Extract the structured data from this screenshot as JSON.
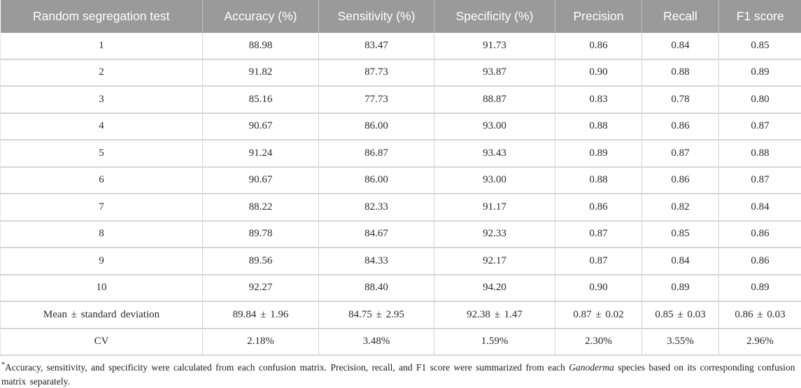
{
  "table": {
    "columns": [
      "Random segregation test",
      "Accuracy (%)",
      "Sensitivity (%)",
      "Specificity (%)",
      "Precision",
      "Recall",
      "F1 score"
    ],
    "rows": [
      [
        "1",
        "88.98",
        "83.47",
        "91.73",
        "0.86",
        "0.84",
        "0.85"
      ],
      [
        "2",
        "91.82",
        "87.73",
        "93.87",
        "0.90",
        "0.88",
        "0.89"
      ],
      [
        "3",
        "85.16",
        "77.73",
        "88.87",
        "0.83",
        "0.78",
        "0.80"
      ],
      [
        "4",
        "90.67",
        "86.00",
        "93.00",
        "0.88",
        "0.86",
        "0.87"
      ],
      [
        "5",
        "91.24",
        "86.87",
        "93.43",
        "0.89",
        "0.87",
        "0.88"
      ],
      [
        "6",
        "90.67",
        "86.00",
        "93.00",
        "0.88",
        "0.86",
        "0.87"
      ],
      [
        "7",
        "88.22",
        "82.33",
        "91.17",
        "0.86",
        "0.82",
        "0.84"
      ],
      [
        "8",
        "89.78",
        "84.67",
        "92.33",
        "0.87",
        "0.85",
        "0.86"
      ],
      [
        "9",
        "89.56",
        "84.33",
        "92.17",
        "0.87",
        "0.84",
        "0.86"
      ],
      [
        "10",
        "92.27",
        "88.40",
        "94.20",
        "0.90",
        "0.89",
        "0.89"
      ],
      [
        "Mean ± standard deviation",
        "89.84 ± 1.96",
        "84.75 ± 2.95",
        "92.38 ± 1.47",
        "0.87 ± 0.02",
        "0.85 ± 0.03",
        "0.86 ± 0.03"
      ],
      [
        "CV",
        "2.18%",
        "3.48%",
        "1.59%",
        "2.30%",
        "3.55%",
        "2.96%"
      ]
    ]
  },
  "footnote": {
    "marker": "*",
    "text_before_italic": "Accuracy, sensitivity, and specificity were calculated from each confusion matrix. Precision, recall, and F1 score were summarized from each ",
    "italic_term": "Ganoderma",
    "text_after_italic": " species based on its corresponding confusion matrix separately."
  },
  "colors": {
    "header_bg": "#9a9a9a",
    "header_text": "#ffffff",
    "body_text": "#2a2a2a",
    "grid_line": "#d6d6d6"
  }
}
